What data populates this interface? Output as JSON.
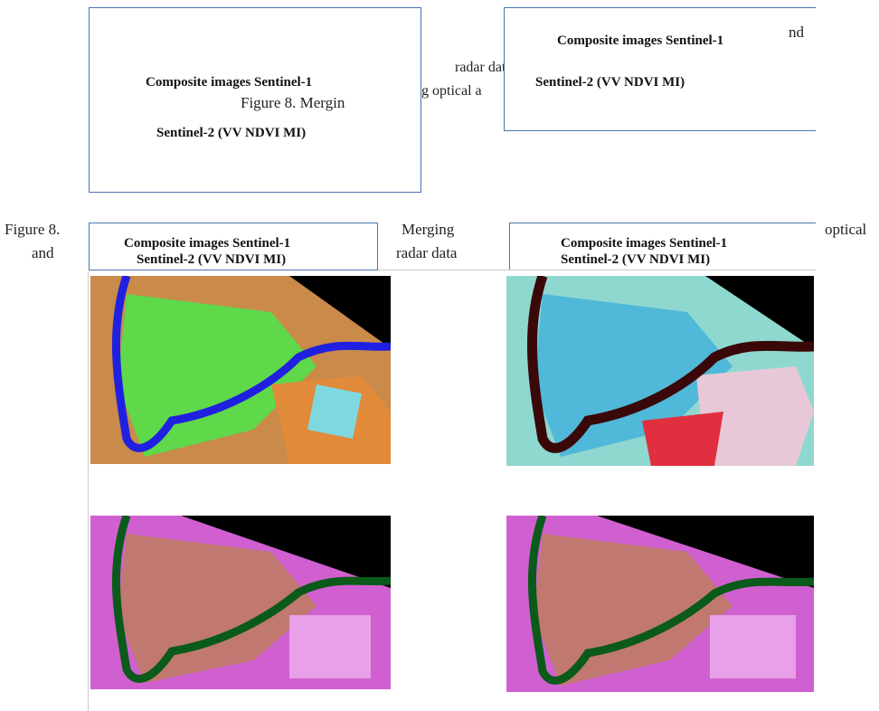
{
  "text_boxes": [
    {
      "lines": [
        "Composite images Sentinel-1",
        "Sentinel-2 (VV NDVI MI)"
      ]
    },
    {
      "lines": [
        "Composite images Sentinel-1",
        "Sentinel-2 (VV NDVI MI)"
      ]
    },
    {
      "lines": [
        "Composite images Sentinel-1",
        "Sentinel-2 (VV NDVI MI)"
      ]
    },
    {
      "lines": [
        "Composite images Sentinel-1",
        "Sentinel-2 (VV NDVI MI)"
      ]
    }
  ],
  "caption_fragments": [
    "Figure 8. Mergin",
    "g optical a",
    "radar data",
    "nd",
    "Figure 8.",
    "and",
    "Merging",
    "radar data",
    "optical"
  ]
}
